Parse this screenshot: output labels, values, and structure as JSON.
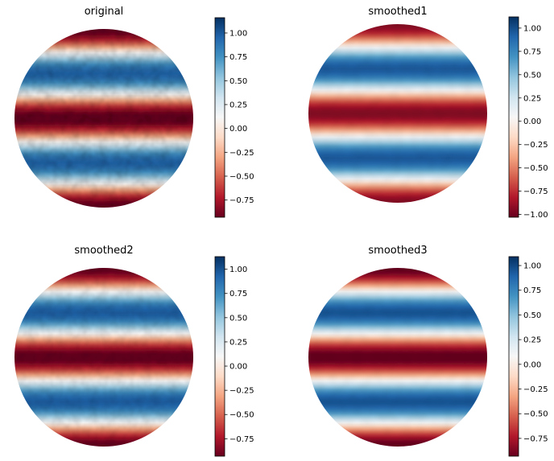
{
  "colormap": {
    "name": "RdBu",
    "stops": [
      "#67001f",
      "#b2182b",
      "#d6604d",
      "#f4a582",
      "#fddbc7",
      "#f7f7f7",
      "#d1e5f0",
      "#92c5de",
      "#4393c3",
      "#2166ac",
      "#053061"
    ]
  },
  "chart_data": [
    {
      "type": "heatmap",
      "title": "original",
      "shape": "disk",
      "pattern": "horizontal bands, value approximately cos of vertical position",
      "band_sequence_top_to_bottom": [
        "red",
        "blue",
        "red",
        "blue",
        "red"
      ],
      "noise": "high",
      "colorbar": {
        "vmin": -0.93,
        "vmax": 1.16,
        "ticks": [
          1.0,
          0.75,
          0.5,
          0.25,
          0.0,
          -0.25,
          -0.5,
          -0.75
        ],
        "tick_labels": [
          "1.00",
          "0.75",
          "0.50",
          "0.25",
          "0.00",
          "−0.25",
          "−0.50",
          "−0.75"
        ]
      }
    },
    {
      "type": "heatmap",
      "title": "smoothed1",
      "shape": "disk",
      "pattern": "horizontal bands, value approximately cos of vertical position",
      "band_sequence_top_to_bottom": [
        "red",
        "blue",
        "red",
        "blue",
        "red"
      ],
      "noise": "low",
      "colorbar": {
        "vmin": -1.03,
        "vmax": 1.12,
        "ticks": [
          1.0,
          0.75,
          0.5,
          0.25,
          0.0,
          -0.25,
          -0.5,
          -0.75,
          -1.0
        ],
        "tick_labels": [
          "1.00",
          "0.75",
          "0.50",
          "0.25",
          "0.00",
          "−0.25",
          "−0.50",
          "−0.75",
          "−1.00"
        ]
      }
    },
    {
      "type": "heatmap",
      "title": "smoothed2",
      "shape": "disk",
      "pattern": "horizontal bands, value approximately cos of vertical position",
      "band_sequence_top_to_bottom": [
        "red",
        "blue",
        "red",
        "blue",
        "red"
      ],
      "noise": "medium",
      "colorbar": {
        "vmin": -0.93,
        "vmax": 1.13,
        "ticks": [
          1.0,
          0.75,
          0.5,
          0.25,
          0.0,
          -0.25,
          -0.5,
          -0.75
        ],
        "tick_labels": [
          "1.00",
          "0.75",
          "0.50",
          "0.25",
          "0.00",
          "−0.25",
          "−0.50",
          "−0.75"
        ]
      }
    },
    {
      "type": "heatmap",
      "title": "smoothed3",
      "shape": "disk",
      "pattern": "horizontal bands, value approximately cos of vertical position",
      "band_sequence_top_to_bottom": [
        "red",
        "blue",
        "red",
        "blue",
        "red"
      ],
      "noise": "low",
      "colorbar": {
        "vmin": -0.93,
        "vmax": 1.09,
        "ticks": [
          1.0,
          0.75,
          0.5,
          0.25,
          0.0,
          -0.25,
          -0.5,
          -0.75
        ],
        "tick_labels": [
          "1.00",
          "0.75",
          "0.50",
          "0.25",
          "0.00",
          "−0.25",
          "−0.50",
          "−0.75"
        ]
      }
    }
  ]
}
